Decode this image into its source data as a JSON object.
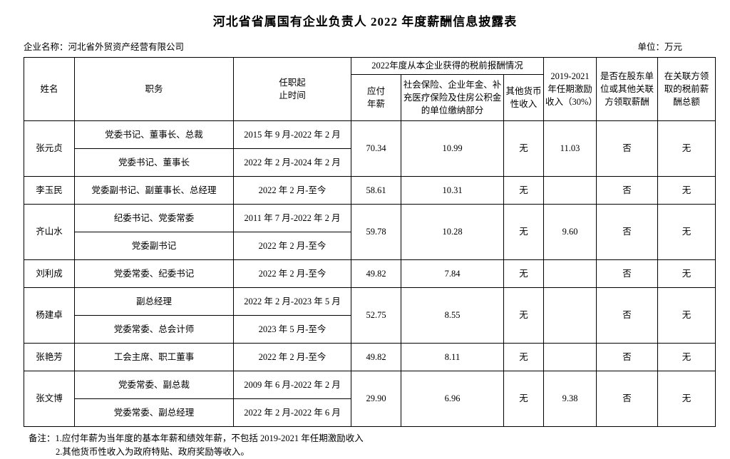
{
  "page": {
    "title": "河北省省属国有企业负责人 2022 年度薪酬信息披露表",
    "company_label": "企业名称：河北省外贸资产经营有限公司",
    "unit_label": "单位：万元"
  },
  "table": {
    "headers": {
      "name": "姓名",
      "position": "职务",
      "term": "任职起\n止时间",
      "group": "2022年度从本企业获得的税前报酬情况",
      "salary": "应付\n年薪",
      "insurance": "社会保险、企业年金、补充医疗保险及住房公积金的单位缴纳部分",
      "other_income": "其他货币\n性收入",
      "incentive": "2019-2021\n年任期激励\n收入（30%）",
      "related_party": "是否在股东单\n位或其他关联\n方领取薪酬",
      "related_amount": "在关联方领\n取的税前薪\n酬总额"
    },
    "rows": [
      {
        "name": "张元贞",
        "terms": [
          {
            "position": "党委书记、董事长、总裁",
            "period": "2015 年 9 月-2022 年 2 月"
          },
          {
            "position": "党委书记、董事长",
            "period": "2022 年 2 月-2024 年 2 月"
          }
        ],
        "salary": "70.34",
        "insurance": "10.99",
        "other_income": "无",
        "incentive": "11.03",
        "related_party": "否",
        "related_amount": "无"
      },
      {
        "name": "李玉民",
        "terms": [
          {
            "position": "党委副书记、副董事长、总经理",
            "period": "2022 年 2 月-至今"
          }
        ],
        "salary": "58.61",
        "insurance": "10.31",
        "other_income": "无",
        "incentive": "",
        "related_party": "否",
        "related_amount": "无"
      },
      {
        "name": "齐山水",
        "terms": [
          {
            "position": "纪委书记、党委常委",
            "period": "2011 年 7 月-2022 年 2 月"
          },
          {
            "position": "党委副书记",
            "period": "2022 年 2 月-至今"
          }
        ],
        "salary": "59.78",
        "insurance": "10.28",
        "other_income": "无",
        "incentive": "9.60",
        "related_party": "否",
        "related_amount": "无"
      },
      {
        "name": "刘利成",
        "terms": [
          {
            "position": "党委常委、纪委书记",
            "period": "2022 年 2 月-至今"
          }
        ],
        "salary": "49.82",
        "insurance": "7.84",
        "other_income": "无",
        "incentive": "",
        "related_party": "否",
        "related_amount": "无"
      },
      {
        "name": "杨建卓",
        "terms": [
          {
            "position": "副总经理",
            "period": "2022 年 2 月-2023 年 5 月"
          },
          {
            "position": "党委常委、总会计师",
            "period": "2023 年 5 月-至今"
          }
        ],
        "salary": "52.75",
        "insurance": "8.55",
        "other_income": "无",
        "incentive": "",
        "related_party": "否",
        "related_amount": "无"
      },
      {
        "name": "张艳芳",
        "terms": [
          {
            "position": "工会主席、职工董事",
            "period": "2022 年 2 月-至今"
          }
        ],
        "salary": "49.82",
        "insurance": "8.11",
        "other_income": "无",
        "incentive": "",
        "related_party": "否",
        "related_amount": "无"
      },
      {
        "name": "张文博",
        "terms": [
          {
            "position": "党委常委、副总裁",
            "period": "2009 年 6 月-2022 年 2 月"
          },
          {
            "position": "党委常委、副总经理",
            "period": "2022 年 2 月-2022 年 6 月"
          }
        ],
        "salary": "29.90",
        "insurance": "6.96",
        "other_income": "无",
        "incentive": "9.38",
        "related_party": "否",
        "related_amount": "无"
      }
    ]
  },
  "notes": {
    "line1": "备注：1.应付年薪为当年度的基本年薪和绩效年薪，不包括 2019-2021 年任期激励收入",
    "line2": "2.其他货币性收入为政府特贴、政府奖励等收入。"
  }
}
